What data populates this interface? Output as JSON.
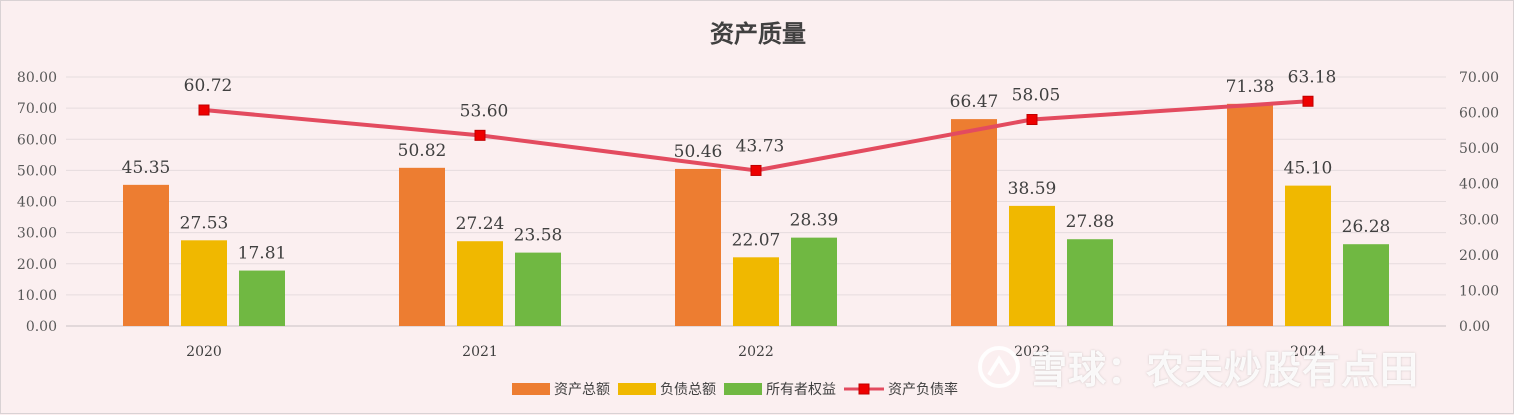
{
  "chart_data": {
    "type": "bar",
    "title": "资产质量",
    "categories": [
      "2020",
      "2021",
      "2022",
      "2023",
      "2024"
    ],
    "series": [
      {
        "name": "资产总额",
        "kind": "bar",
        "axis": "left",
        "color": "#ed7d31",
        "values": [
          45.35,
          50.82,
          50.46,
          66.47,
          71.38
        ]
      },
      {
        "name": "负债总额",
        "kind": "bar",
        "axis": "left",
        "color": "#f0b800",
        "values": [
          27.53,
          27.24,
          22.07,
          38.59,
          45.1
        ]
      },
      {
        "name": "所有者权益",
        "kind": "bar",
        "axis": "left",
        "color": "#70b842",
        "values": [
          17.81,
          23.58,
          28.39,
          27.88,
          26.28
        ]
      },
      {
        "name": "资产负债率",
        "kind": "line",
        "axis": "right",
        "color": "#e34b5f",
        "marker_color": "#ee0000",
        "values": [
          60.72,
          53.6,
          43.73,
          58.05,
          63.18
        ]
      }
    ],
    "y_left": {
      "min": 0,
      "max": 80,
      "step": 10,
      "ticks": [
        "0.00",
        "10.00",
        "20.00",
        "30.00",
        "40.00",
        "50.00",
        "60.00",
        "70.00",
        "80.00"
      ]
    },
    "y_right": {
      "min": 0,
      "max": 70,
      "step": 10,
      "ticks": [
        "0.00",
        "10.00",
        "20.00",
        "30.00",
        "40.00",
        "50.00",
        "60.00",
        "70.00"
      ]
    },
    "grid": true,
    "legend_position": "bottom"
  },
  "watermark": {
    "text": "雪球：农夫炒股有点田"
  }
}
